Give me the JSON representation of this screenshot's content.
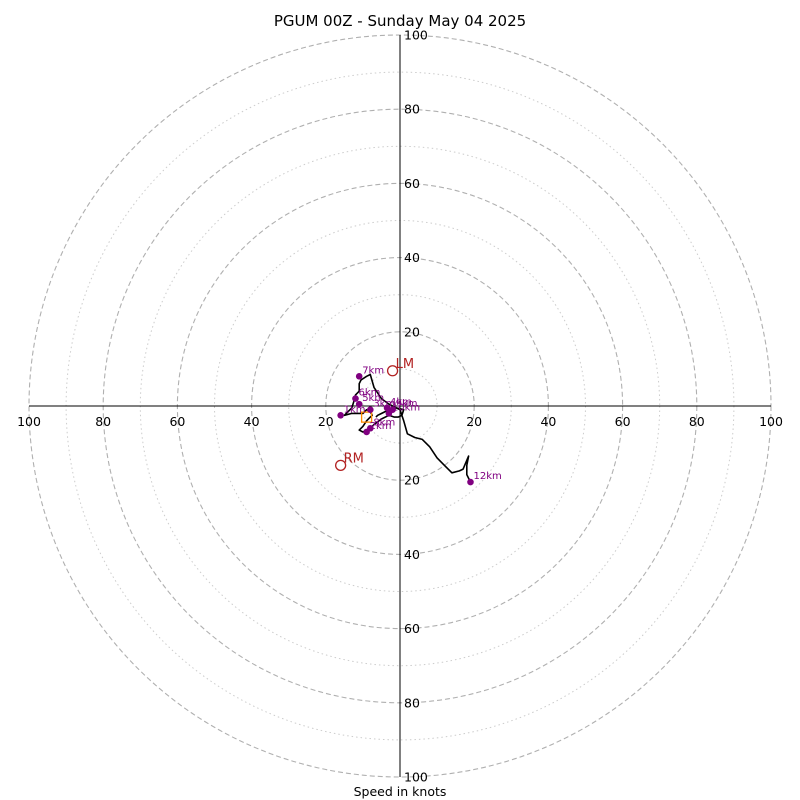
{
  "chart_data": {
    "type": "scatter",
    "title": "PGUM 00Z - Sunday May 04 2025",
    "xlabel": "Speed in knots",
    "ylabel": "",
    "xlim": [
      -100,
      100
    ],
    "ylim": [
      -100,
      100
    ],
    "rings_dashed": [
      20,
      40,
      60,
      80,
      100
    ],
    "rings_dotted": [
      10,
      30,
      50,
      70,
      90
    ],
    "tick_values": [
      100,
      80,
      60,
      40,
      20
    ],
    "tick_labels": [
      "100",
      "80",
      "60",
      "40",
      "20"
    ],
    "grid": true,
    "series": [
      {
        "type": "line",
        "color": "#000000",
        "u": [
          -6.5,
          -6,
          -4,
          -2,
          -1,
          1,
          0.5,
          -0.5,
          -1.5,
          -3,
          -5,
          -7,
          -8,
          -10,
          -11,
          -10,
          -9,
          -8,
          -7.5,
          -8,
          -9,
          -10,
          -13,
          -15,
          -14,
          -13,
          -12.5,
          -12,
          -11,
          -11,
          -10.5,
          -9,
          -8,
          -7,
          -5,
          -3,
          -2,
          0,
          1,
          2,
          4,
          6,
          8,
          10,
          12,
          14,
          16,
          17,
          18.5,
          18,
          18,
          19
        ],
        "v": [
          -3,
          -2.5,
          -1.5,
          -1,
          -0.5,
          -1,
          -2.5,
          -3,
          -3,
          -2.5,
          -3.5,
          -5,
          -6,
          -7,
          -6.5,
          -5.5,
          -4,
          -3,
          -2.5,
          -1.5,
          -1,
          -2,
          -2,
          -2.5,
          -1.5,
          -0.5,
          1,
          3,
          4,
          6,
          7,
          8,
          8.5,
          5,
          2,
          0.5,
          0,
          -1,
          -4,
          -7.5,
          -8.5,
          -9,
          -11,
          -14,
          -16,
          -18,
          -17.5,
          -17,
          -13.5,
          -16,
          -18.5,
          -20.5
        ]
      }
    ],
    "height_markers": [
      {
        "label": "1km",
        "u": -16,
        "v": -2.5
      },
      {
        "label": "2km",
        "u": -9,
        "v": -7
      },
      {
        "label": "3km",
        "u": -8,
        "v": -1
      },
      {
        "label": "4km",
        "u": -3.5,
        "v": -0.5
      },
      {
        "label": "5km",
        "u": -11,
        "v": 0.5
      },
      {
        "label": "6km",
        "u": -12,
        "v": 2
      },
      {
        "label": "7km",
        "u": -11,
        "v": 8
      },
      {
        "label": "8km",
        "u": -8,
        "v": -6
      },
      {
        "label": "9km",
        "u": -2,
        "v": -1
      },
      {
        "label": "10km",
        "u": -3,
        "v": -2
      },
      {
        "label": "12km",
        "u": 19,
        "v": -20.5
      }
    ],
    "mean_wind": {
      "u": -9,
      "v": -3
    },
    "storm_vectors": [
      {
        "label": "LM",
        "u": -2,
        "v": 9.5
      },
      {
        "label": "RM",
        "u": -16,
        "v": -16
      }
    ],
    "colors": {
      "hodograph": "#000000",
      "height_marker": "#800080",
      "storm_motion": "#b22222",
      "mean_wind": "#ff8c00",
      "grid": "#b0b0b0"
    }
  }
}
